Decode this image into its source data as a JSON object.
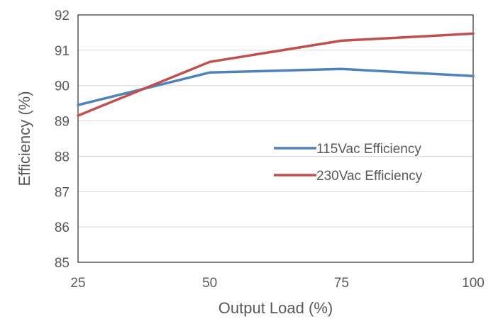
{
  "chart_data": {
    "type": "line",
    "title": "",
    "xlabel": "Output Load (%)",
    "ylabel": "Efficiency (%)",
    "x": [
      25,
      50,
      75,
      100
    ],
    "xlim": [
      25,
      100
    ],
    "ylim": [
      85,
      92
    ],
    "xticks": [
      25,
      50,
      75,
      100
    ],
    "yticks": [
      85,
      86,
      87,
      88,
      89,
      90,
      91,
      92
    ],
    "grid": "horizontal",
    "legend_position": "right-middle",
    "series": [
      {
        "name": "115Vac Efficiency",
        "color": "#4F81BD",
        "values": [
          89.45,
          90.37,
          90.47,
          90.27
        ]
      },
      {
        "name": "230Vac Efficiency",
        "color": "#C0504D",
        "values": [
          89.15,
          90.67,
          91.27,
          91.47
        ]
      }
    ]
  }
}
